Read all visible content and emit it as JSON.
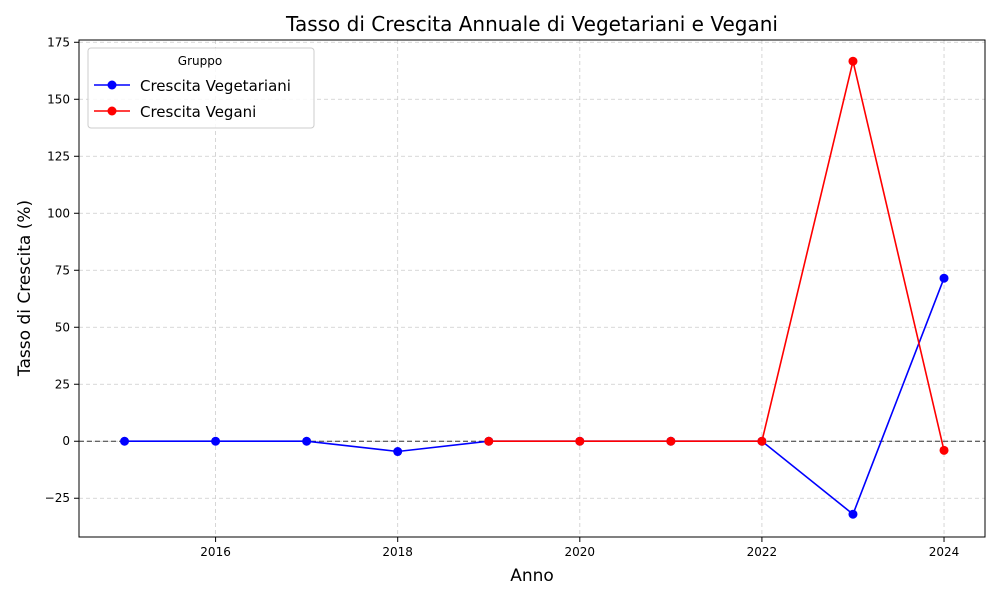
{
  "chart_data": {
    "type": "line",
    "title": "Tasso di Crescita Annuale di Vegetariani e Vegani",
    "xlabel": "Anno",
    "ylabel": "Tasso di Crescita (%)",
    "xlim": [
      2014.5,
      2024.45
    ],
    "ylim": [
      -42,
      176
    ],
    "xticks": [
      2016,
      2018,
      2020,
      2022,
      2024
    ],
    "yticks": [
      -25,
      0,
      25,
      50,
      75,
      100,
      125,
      150,
      175
    ],
    "grid": true,
    "zero_line": true,
    "legend": {
      "title": "Gruppo",
      "placement": "top-left"
    },
    "series": [
      {
        "name": "Crescita Vegetariani",
        "color": "#0000ff",
        "x": [
          2015,
          2016,
          2017,
          2018,
          2019,
          2020,
          2021,
          2022,
          2023,
          2024
        ],
        "y": [
          0,
          0,
          0,
          -4.5,
          0,
          0,
          0,
          0,
          -32,
          71.5
        ]
      },
      {
        "name": "Crescita Vegani",
        "color": "#ff0000",
        "x": [
          2019,
          2020,
          2021,
          2022,
          2023,
          2024
        ],
        "y": [
          0,
          0,
          0,
          0,
          166.7,
          -4
        ]
      }
    ]
  }
}
